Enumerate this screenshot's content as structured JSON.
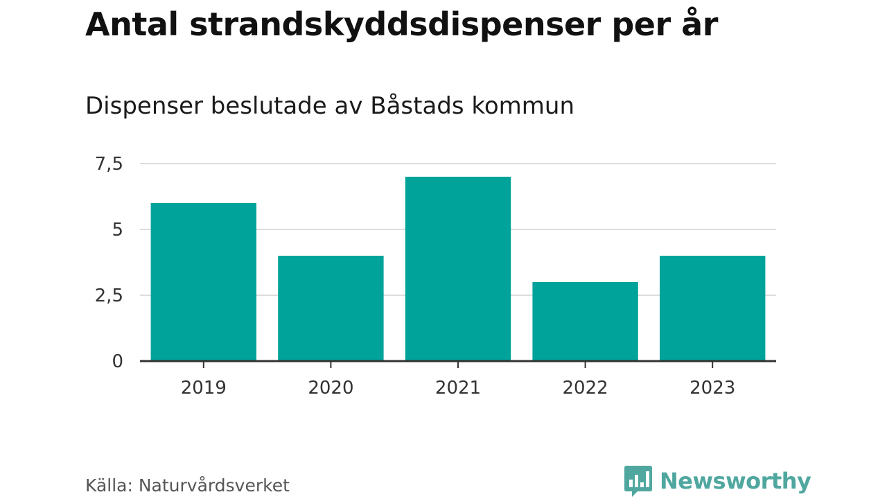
{
  "header": {
    "title": "Antal strandskyddsdispenser per år",
    "subtitle": "Dispenser beslutade av Båstads kommun"
  },
  "footer": {
    "source": "Källa: Naturvårdsverket",
    "brand": "Newsworthy",
    "brand_icon": "bar-chart-speech-bubble-icon"
  },
  "colors": {
    "bar": "#00a39a",
    "grid": "#dddddd",
    "axis": "#333333",
    "brand": "#4fa79f"
  },
  "chart_data": {
    "type": "bar",
    "categories": [
      "2019",
      "2020",
      "2021",
      "2022",
      "2023"
    ],
    "values": [
      6,
      4,
      7,
      3,
      4
    ],
    "ylim": [
      0,
      7.5
    ],
    "yticks": [
      0,
      2.5,
      5,
      7.5
    ],
    "ytick_labels": [
      "0",
      "2,5",
      "5",
      "7,5"
    ],
    "grid": true,
    "legend": "none"
  }
}
